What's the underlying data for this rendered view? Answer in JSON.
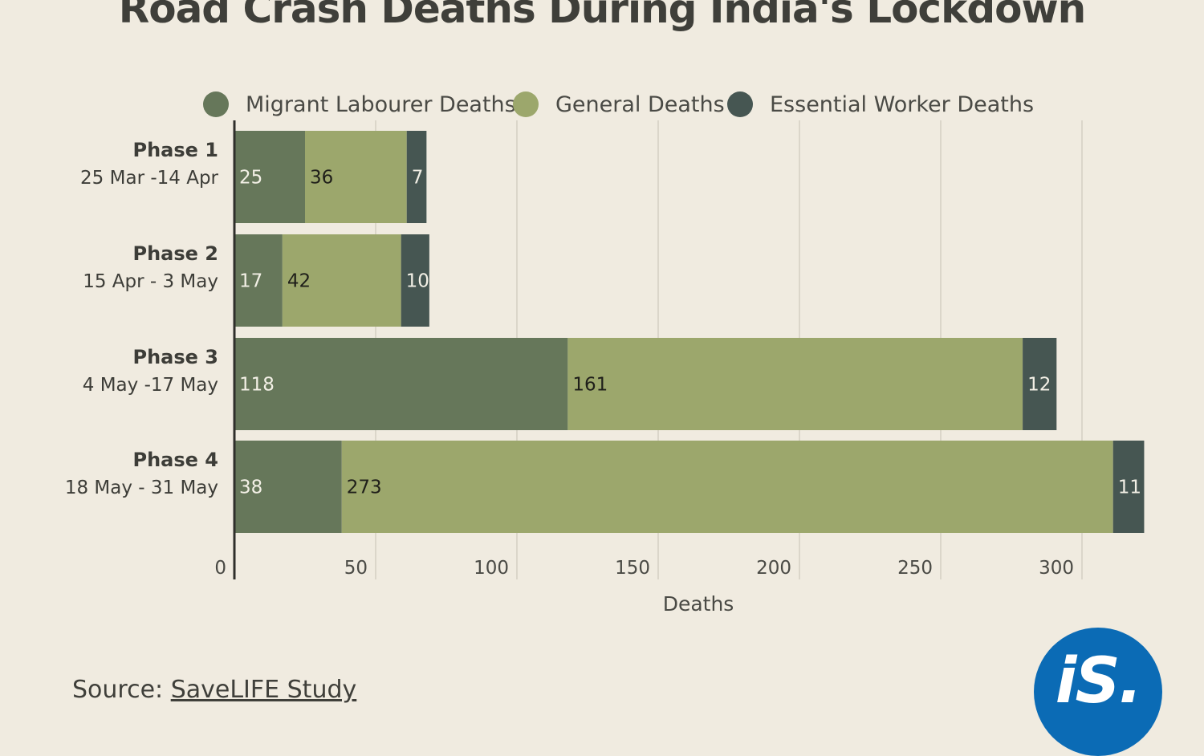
{
  "chart_data": {
    "type": "bar",
    "orientation": "horizontal",
    "stacked": true,
    "title": "Road Crash Deaths During India's Lockdown",
    "xlabel": "Deaths",
    "xlim": [
      0,
      325
    ],
    "xticks": [
      0,
      50,
      100,
      150,
      200,
      250,
      300
    ],
    "grid": true,
    "legend_position": "top",
    "categories": [
      {
        "name": "Phase 1",
        "dates": "25 Mar -14 Apr"
      },
      {
        "name": "Phase 2",
        "dates": "15 Apr - 3 May"
      },
      {
        "name": "Phase 3",
        "dates": "4 May -17 May"
      },
      {
        "name": "Phase 4",
        "dates": "18 May - 31 May"
      }
    ],
    "series": [
      {
        "name": "Migrant Labourer Deaths",
        "color": "#66775a",
        "label_color": "#f3f0e6",
        "values": [
          25,
          17,
          118,
          38
        ]
      },
      {
        "name": "General Deaths",
        "color": "#9ca76c",
        "label_color": "#1f1f1a",
        "values": [
          36,
          42,
          161,
          273
        ]
      },
      {
        "name": "Essential Worker Deaths",
        "color": "#465652",
        "label_color": "#f3f0e6",
        "values": [
          7,
          10,
          12,
          11
        ]
      }
    ]
  },
  "source": {
    "prefix": "Source: ",
    "link": "SaveLIFE Study"
  },
  "logo": {
    "text": "iS."
  }
}
